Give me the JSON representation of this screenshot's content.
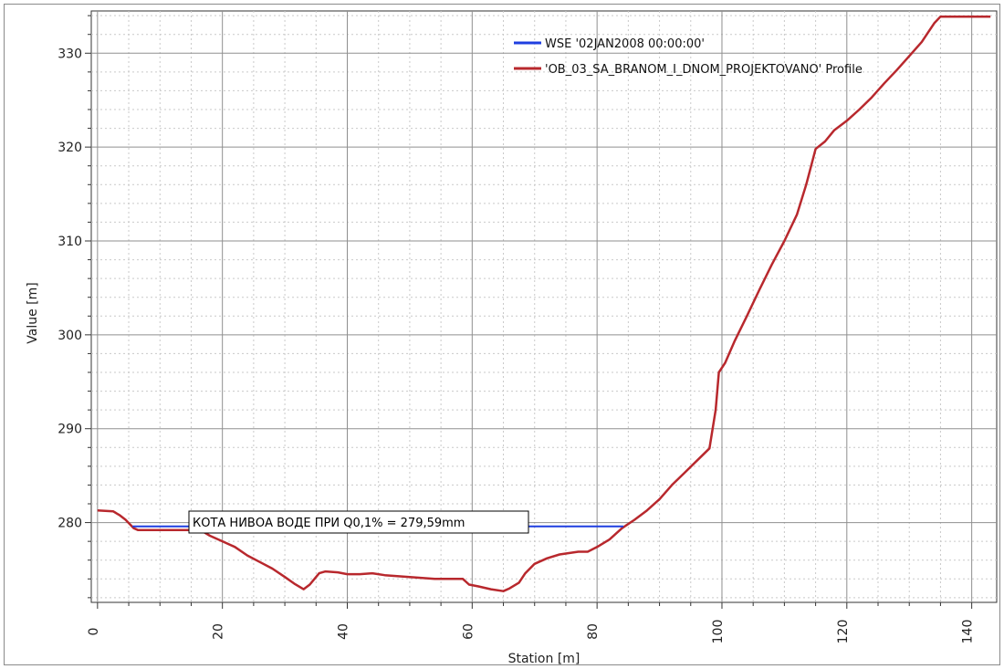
{
  "chart_data": {
    "type": "line",
    "xlabel": "Station [m]",
    "ylabel": "Value [m]",
    "xlim": [
      -1,
      144
    ],
    "ylim": [
      271.5,
      334.5
    ],
    "xticks": [
      0,
      20,
      40,
      60,
      80,
      100,
      120,
      140
    ],
    "yticks": [
      280,
      290,
      300,
      310,
      320,
      330
    ],
    "grid": true,
    "legend_position": "top-right",
    "series": [
      {
        "name": "WSE '02JAN2008 00:00:00'",
        "color": "#1f3fe0",
        "points": [
          [
            5.6,
            279.59
          ],
          [
            84.2,
            279.59
          ]
        ]
      },
      {
        "name": "'OB_03_SA_BRANOM_I_DNOM_PROJEKTOVANO' Profile",
        "color": "#b8282d",
        "points": [
          [
            0,
            281.3
          ],
          [
            2.5,
            281.2
          ],
          [
            3.5,
            280.8
          ],
          [
            4.5,
            280.3
          ],
          [
            5.8,
            279.4
          ],
          [
            6.5,
            279.2
          ],
          [
            16.5,
            279.2
          ],
          [
            18,
            278.6
          ],
          [
            20,
            278.0
          ],
          [
            22,
            277.4
          ],
          [
            24,
            276.5
          ],
          [
            26,
            275.8
          ],
          [
            28,
            275.1
          ],
          [
            30,
            274.2
          ],
          [
            31.5,
            273.5
          ],
          [
            33,
            272.9
          ],
          [
            34,
            273.4
          ],
          [
            35.5,
            274.6
          ],
          [
            36.5,
            274.8
          ],
          [
            38.5,
            274.7
          ],
          [
            40,
            274.5
          ],
          [
            42,
            274.5
          ],
          [
            44,
            274.6
          ],
          [
            46,
            274.4
          ],
          [
            48,
            274.3
          ],
          [
            50,
            274.2
          ],
          [
            52,
            274.1
          ],
          [
            54,
            274.0
          ],
          [
            56,
            274.0
          ],
          [
            58.5,
            274.0
          ],
          [
            59.5,
            273.4
          ],
          [
            61,
            273.2
          ],
          [
            63,
            272.9
          ],
          [
            65,
            272.7
          ],
          [
            66,
            273.0
          ],
          [
            67.5,
            273.6
          ],
          [
            68.5,
            274.6
          ],
          [
            70,
            275.6
          ],
          [
            72,
            276.2
          ],
          [
            74,
            276.6
          ],
          [
            77,
            276.9
          ],
          [
            78.5,
            276.9
          ],
          [
            80,
            277.4
          ],
          [
            82,
            278.2
          ],
          [
            84,
            279.4
          ],
          [
            86,
            280.3
          ],
          [
            88,
            281.3
          ],
          [
            90,
            282.5
          ],
          [
            92,
            284.0
          ],
          [
            94,
            285.3
          ],
          [
            96,
            286.6
          ],
          [
            98,
            287.9
          ],
          [
            99,
            292.0
          ],
          [
            99.5,
            296.0
          ],
          [
            100.5,
            297.0
          ],
          [
            102,
            299.3
          ],
          [
            104,
            302.0
          ],
          [
            106,
            304.8
          ],
          [
            108,
            307.5
          ],
          [
            110,
            310.0
          ],
          [
            112,
            312.8
          ],
          [
            113.5,
            316.0
          ],
          [
            115,
            319.8
          ],
          [
            116.5,
            320.6
          ],
          [
            118,
            321.8
          ],
          [
            120,
            322.8
          ],
          [
            122,
            324.0
          ],
          [
            124,
            325.3
          ],
          [
            126,
            326.8
          ],
          [
            128,
            328.2
          ],
          [
            130,
            329.7
          ],
          [
            132,
            331.2
          ],
          [
            134,
            333.2
          ],
          [
            135,
            333.9
          ],
          [
            143,
            333.9
          ]
        ]
      }
    ],
    "annotation": {
      "text": "КОТА НИВОА ВОДЕ ПРИ Q0,1% = 279,59mm",
      "x": 15.5,
      "y": 279.59
    }
  }
}
